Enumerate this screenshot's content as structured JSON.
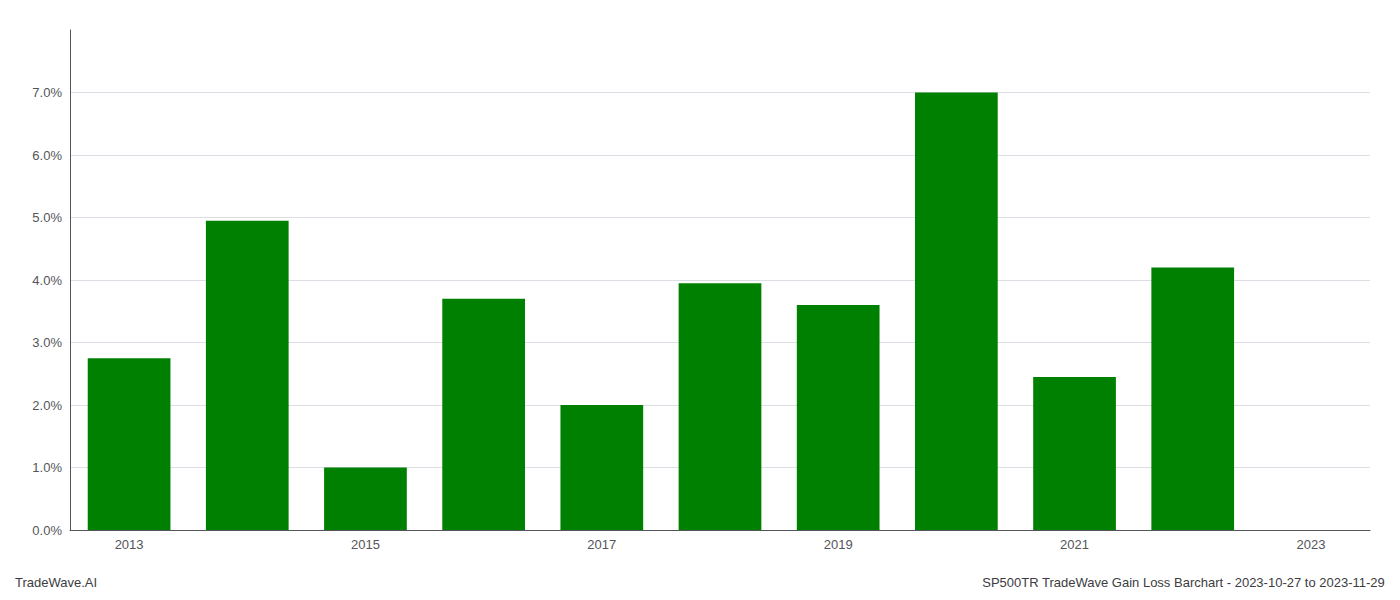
{
  "chart_data": {
    "type": "bar",
    "categories": [
      "2013",
      null,
      "2015",
      null,
      "2017",
      null,
      "2019",
      null,
      "2021",
      null,
      "2023"
    ],
    "values": [
      0.0275,
      0.0495,
      0.01,
      0.037,
      0.02,
      0.0395,
      0.036,
      0.07,
      0.0245,
      0.042,
      null
    ],
    "color": "#008000",
    "ylim": [
      0,
      0.08
    ],
    "yticks": [
      {
        "value": 0.0,
        "label": "0.0%"
      },
      {
        "value": 0.01,
        "label": "1.0%"
      },
      {
        "value": 0.02,
        "label": "2.0%"
      },
      {
        "value": 0.03,
        "label": "3.0%"
      },
      {
        "value": 0.04,
        "label": "4.0%"
      },
      {
        "value": 0.05,
        "label": "5.0%"
      },
      {
        "value": 0.06,
        "label": "6.0%"
      },
      {
        "value": 0.07,
        "label": "7.0%"
      }
    ],
    "grid": true,
    "annotations": [
      "TradeWave.AI",
      "SP500TR TradeWave Gain Loss Barchart - 2023-10-27 to 2023-11-29"
    ]
  }
}
